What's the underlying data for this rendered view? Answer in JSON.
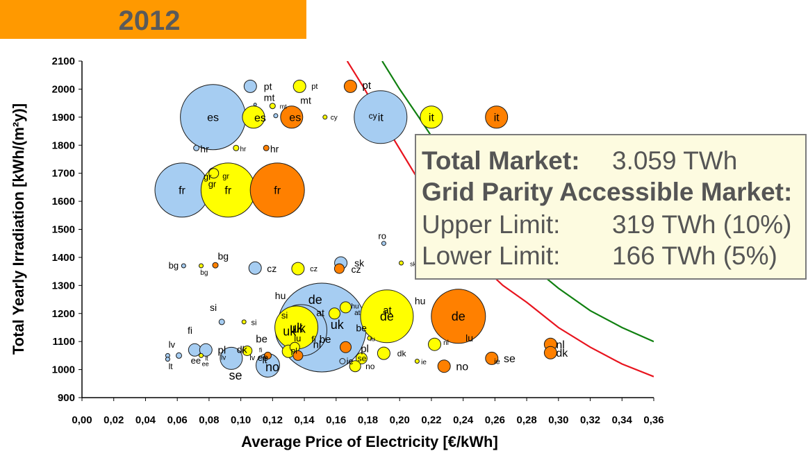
{
  "banner": {
    "year": "2012",
    "color": "#ff9900"
  },
  "infobox": {
    "total_label": "Total Market:",
    "total_value": "3.059 TWh",
    "grid_label": "Grid Parity Accessible Market:",
    "upper_label": "Upper Limit:",
    "upper_value": "319 TWh (10%)",
    "lower_label": "Lower Limit:",
    "lower_value": "166 TWh (5%)"
  },
  "chart_data": {
    "type": "bubble",
    "xlabel": "Average Price of Electricity [€/kWh]",
    "ylabel": "Total Yearly Irradiation [kWh/(m²y)]",
    "xlim": [
      0,
      0.36
    ],
    "ylim": [
      900,
      2100
    ],
    "x_ticks": [
      "0,00",
      "0,02",
      "0,04",
      "0,06",
      "0,08",
      "0,10",
      "0,12",
      "0,14",
      "0,16",
      "0,18",
      "0,20",
      "0,22",
      "0,24",
      "0,26",
      "0,28",
      "0,30",
      "0,32",
      "0,34",
      "0,36"
    ],
    "y_ticks": [
      "900",
      "1000",
      "1100",
      "1200",
      "1300",
      "1400",
      "1500",
      "1600",
      "1700",
      "1800",
      "1900",
      "2000",
      "2100"
    ],
    "grid": false,
    "series_colors": {
      "blue": "#a6cdf2",
      "yellow": "#ffff00",
      "orange": "#ff8000"
    },
    "curves": [
      {
        "color": "#e8141e",
        "points": [
          [
            0.167,
            2100
          ],
          [
            0.178,
            2000
          ],
          [
            0.19,
            1880
          ],
          [
            0.205,
            1740
          ],
          [
            0.22,
            1600
          ],
          [
            0.235,
            1480
          ],
          [
            0.25,
            1380
          ],
          [
            0.265,
            1300
          ],
          [
            0.28,
            1240
          ],
          [
            0.3,
            1150
          ],
          [
            0.32,
            1080
          ],
          [
            0.34,
            1020
          ],
          [
            0.36,
            975
          ]
        ]
      },
      {
        "color": "#108010",
        "points": [
          [
            0.189,
            2100
          ],
          [
            0.2,
            2000
          ],
          [
            0.212,
            1900
          ],
          [
            0.225,
            1790
          ],
          [
            0.24,
            1680
          ],
          [
            0.255,
            1560
          ],
          [
            0.27,
            1450
          ],
          [
            0.285,
            1360
          ],
          [
            0.3,
            1290
          ],
          [
            0.32,
            1210
          ],
          [
            0.34,
            1150
          ],
          [
            0.36,
            1100
          ]
        ]
      }
    ],
    "bubbles": [
      {
        "label": "es",
        "x": 0.0825,
        "y": 1900,
        "r": 47,
        "color": "blue",
        "fs": 16
      },
      {
        "label": "fr",
        "x": 0.063,
        "y": 1640,
        "r": 39,
        "color": "blue",
        "fs": 16
      },
      {
        "label": "it",
        "x": 0.188,
        "y": 1900,
        "r": 38,
        "color": "blue",
        "fs": 16
      },
      {
        "label": "de",
        "x": 0.151,
        "y": 1150,
        "r": 64,
        "color": "blue",
        "fs": 0
      },
      {
        "label": "uk",
        "x": 0.138,
        "y": 1140,
        "r": 37,
        "color": "blue",
        "fs": 0
      },
      {
        "label": "pt",
        "x": 0.106,
        "y": 2010,
        "r": 9,
        "color": "blue",
        "fs": 0
      },
      {
        "label": "mt",
        "x": 0.109,
        "y": 1945,
        "r": 2,
        "color": "blue",
        "fs": 0
      },
      {
        "label": "cy",
        "x": 0.122,
        "y": 1905,
        "r": 3,
        "color": "blue",
        "fs": 0
      },
      {
        "label": "hr",
        "x": 0.072,
        "y": 1790,
        "r": 4,
        "color": "blue",
        "fs": 0
      },
      {
        "label": "gr",
        "x": 0.083,
        "y": 1700,
        "r": 8,
        "color": "blue",
        "fs": 0
      },
      {
        "label": "ro",
        "x": 0.19,
        "y": 1450,
        "r": 3,
        "color": "blue",
        "fs": 0
      },
      {
        "label": "bg",
        "x": 0.064,
        "y": 1370,
        "r": 3,
        "color": "blue",
        "fs": 0
      },
      {
        "label": "cz",
        "x": 0.109,
        "y": 1362,
        "r": 9,
        "color": "blue",
        "fs": 0
      },
      {
        "label": "sk",
        "x": 0.163,
        "y": 1380,
        "r": 9,
        "color": "blue",
        "fs": 0
      },
      {
        "label": "si",
        "x": 0.088,
        "y": 1170,
        "r": 4,
        "color": "blue",
        "fs": 0
      },
      {
        "label": "fi",
        "x": 0.071,
        "y": 1070,
        "r": 9,
        "color": "blue",
        "fs": 0
      },
      {
        "label": "ee",
        "x": 0.078,
        "y": 1070,
        "r": 9,
        "color": "blue",
        "fs": 0
      },
      {
        "label": "lv",
        "x": 0.054,
        "y": 1050,
        "r": 3,
        "color": "blue",
        "fs": 0
      },
      {
        "label": "lt",
        "x": 0.054,
        "y": 1037,
        "r": 3,
        "color": "blue",
        "fs": 0
      },
      {
        "label": "dk",
        "x": 0.061,
        "y": 1050,
        "r": 4,
        "color": "blue",
        "fs": 0
      },
      {
        "label": "se",
        "x": 0.094,
        "y": 1040,
        "r": 16,
        "color": "blue",
        "fs": 0
      },
      {
        "label": "no",
        "x": 0.117,
        "y": 1015,
        "r": 17,
        "color": "blue",
        "fs": 0
      },
      {
        "label": "ie",
        "x": 0.164,
        "y": 1030,
        "r": 4,
        "color": "blue",
        "fs": 0
      },
      {
        "label": "es",
        "x": 0.108,
        "y": 1900,
        "r": 16,
        "color": "yellow",
        "fs": 0
      },
      {
        "label": "fr",
        "x": 0.092,
        "y": 1640,
        "r": 39,
        "color": "yellow",
        "fs": 16
      },
      {
        "label": "it",
        "x": 0.22,
        "y": 1900,
        "r": 16,
        "color": "yellow",
        "fs": 16
      },
      {
        "label": "de",
        "x": 0.192,
        "y": 1190,
        "r": 38,
        "color": "yellow",
        "fs": 18
      },
      {
        "label": "uk",
        "x": 0.135,
        "y": 1150,
        "r": 31,
        "color": "yellow",
        "fs": 18
      },
      {
        "label": "pt",
        "x": 0.137,
        "y": 2010,
        "r": 9,
        "color": "yellow",
        "fs": 0
      },
      {
        "label": "mt",
        "x": 0.12,
        "y": 1940,
        "r": 4,
        "color": "yellow",
        "fs": 0
      },
      {
        "label": "cy",
        "x": 0.153,
        "y": 1900,
        "r": 3,
        "color": "yellow",
        "fs": 0
      },
      {
        "label": "hr",
        "x": 0.097,
        "y": 1790,
        "r": 4,
        "color": "yellow",
        "fs": 0
      },
      {
        "label": "gr",
        "x": 0.083,
        "y": 1700,
        "r": 7,
        "color": "yellow",
        "fs": 0
      },
      {
        "label": "bg",
        "x": 0.075,
        "y": 1370,
        "r": 3,
        "color": "yellow",
        "fs": 0
      },
      {
        "label": "cz",
        "x": 0.136,
        "y": 1360,
        "r": 9,
        "color": "yellow",
        "fs": 0
      },
      {
        "label": "sk",
        "x": 0.201,
        "y": 1380,
        "r": 3,
        "color": "yellow",
        "fs": 0
      },
      {
        "label": "si",
        "x": 0.102,
        "y": 1170,
        "r": 3,
        "color": "yellow",
        "fs": 0
      },
      {
        "label": "at",
        "x": 0.159,
        "y": 1200,
        "r": 8,
        "color": "yellow",
        "fs": 0
      },
      {
        "label": "hu",
        "x": 0.166,
        "y": 1222,
        "r": 8,
        "color": "yellow",
        "fs": 0
      },
      {
        "label": "lu",
        "x": 0.181,
        "y": 1112,
        "r": 3,
        "color": "yellow",
        "fs": 0
      },
      {
        "label": "fi",
        "x": 0.104,
        "y": 1067,
        "r": 7,
        "color": "yellow",
        "fs": 0
      },
      {
        "label": "lv",
        "x": 0.075,
        "y": 1050,
        "r": 3,
        "color": "yellow",
        "fs": 0
      },
      {
        "label": "dk",
        "x": 0.19,
        "y": 1058,
        "r": 9,
        "color": "yellow",
        "fs": 0
      },
      {
        "label": "se",
        "x": 0.176,
        "y": 1040,
        "r": 8,
        "color": "yellow",
        "fs": 0
      },
      {
        "label": "no",
        "x": 0.172,
        "y": 1012,
        "r": 8,
        "color": "yellow",
        "fs": 0
      },
      {
        "label": "ie",
        "x": 0.211,
        "y": 1030,
        "r": 3,
        "color": "yellow",
        "fs": 0
      },
      {
        "label": "nl",
        "x": 0.222,
        "y": 1090,
        "r": 9,
        "color": "yellow",
        "fs": 0
      },
      {
        "label": "pl",
        "x": 0.13,
        "y": 1065,
        "r": 9,
        "color": "yellow",
        "fs": 0
      },
      {
        "label": "be",
        "x": 0.134,
        "y": 1080,
        "r": 7,
        "color": "yellow",
        "fs": 0
      },
      {
        "label": "es",
        "x": 0.132,
        "y": 1900,
        "r": 16,
        "color": "orange",
        "fs": 0
      },
      {
        "label": "fr",
        "x": 0.123,
        "y": 1640,
        "r": 39,
        "color": "orange",
        "fs": 16
      },
      {
        "label": "it",
        "x": 0.261,
        "y": 1900,
        "r": 16,
        "color": "orange",
        "fs": 16
      },
      {
        "label": "de",
        "x": 0.237,
        "y": 1190,
        "r": 39,
        "color": "orange",
        "fs": 18
      },
      {
        "label": "pt",
        "x": 0.169,
        "y": 2010,
        "r": 9,
        "color": "orange",
        "fs": 0
      },
      {
        "label": "hr",
        "x": 0.116,
        "y": 1790,
        "r": 4,
        "color": "orange",
        "fs": 0
      },
      {
        "label": "bg",
        "x": 0.084,
        "y": 1372,
        "r": 4,
        "color": "orange",
        "fs": 0
      },
      {
        "label": "cz",
        "x": 0.162,
        "y": 1360,
        "r": 7,
        "color": "orange",
        "fs": 0
      },
      {
        "label": "nl",
        "x": 0.295,
        "y": 1090,
        "r": 9,
        "color": "orange",
        "fs": 0
      },
      {
        "label": "dk",
        "x": 0.295,
        "y": 1060,
        "r": 9,
        "color": "orange",
        "fs": 0
      },
      {
        "label": "se",
        "x": 0.258,
        "y": 1040,
        "r": 9,
        "color": "orange",
        "fs": 0
      },
      {
        "label": "no",
        "x": 0.228,
        "y": 1012,
        "r": 9,
        "color": "orange",
        "fs": 0
      },
      {
        "label": "lu",
        "x": 0.166,
        "y": 1080,
        "r": 8,
        "color": "orange",
        "fs": 0
      },
      {
        "label": "hu",
        "x": 0.136,
        "y": 1050,
        "r": 7,
        "color": "orange",
        "fs": 0
      },
      {
        "label": "ee",
        "x": 0.117,
        "y": 1050,
        "r": 5,
        "color": "orange",
        "fs": 0
      }
    ],
    "texts": [
      {
        "t": "pt",
        "x": 0.1145,
        "y": 2010,
        "fs": 14
      },
      {
        "t": "pt",
        "x": 0.1445,
        "y": 2010,
        "fs": 11
      },
      {
        "t": "pt",
        "x": 0.1765,
        "y": 2014,
        "fs": 15
      },
      {
        "t": "mt",
        "x": 0.1145,
        "y": 1970,
        "fs": 14
      },
      {
        "t": "mt",
        "x": 0.1375,
        "y": 1960,
        "fs": 14
      },
      {
        "t": "mt",
        "x": 0.1245,
        "y": 1938,
        "fs": 9
      },
      {
        "t": "cy",
        "x": 0.1565,
        "y": 1900,
        "fs": 10
      },
      {
        "t": "es",
        "x": 0.1085,
        "y": 1898,
        "fs": 16
      },
      {
        "t": "es",
        "x": 0.1305,
        "y": 1900,
        "fs": 16
      },
      {
        "t": "cy",
        "x": 0.1805,
        "y": 1905,
        "fs": 12
      },
      {
        "t": "hr",
        "x": 0.0745,
        "y": 1787,
        "fs": 14
      },
      {
        "t": "hr",
        "x": 0.0995,
        "y": 1787,
        "fs": 10
      },
      {
        "t": "hr",
        "x": 0.1185,
        "y": 1787,
        "fs": 14
      },
      {
        "t": "gr",
        "x": 0.0765,
        "y": 1688,
        "fs": 13
      },
      {
        "t": "gr",
        "x": 0.0885,
        "y": 1690,
        "fs": 11
      },
      {
        "t": "gr",
        "x": 0.0795,
        "y": 1662,
        "fs": 13
      },
      {
        "t": "ro",
        "x": 0.1865,
        "y": 1477,
        "fs": 13
      },
      {
        "t": "bg",
        "x": 0.0545,
        "y": 1372,
        "fs": 13
      },
      {
        "t": "bg",
        "x": 0.0855,
        "y": 1405,
        "fs": 14
      },
      {
        "t": "bg",
        "x": 0.0745,
        "y": 1347,
        "fs": 10
      },
      {
        "t": "cz",
        "x": 0.1165,
        "y": 1360,
        "fs": 14
      },
      {
        "t": "cz",
        "x": 0.1435,
        "y": 1360,
        "fs": 11
      },
      {
        "t": "sk",
        "x": 0.1715,
        "y": 1380,
        "fs": 14
      },
      {
        "t": "cz",
        "x": 0.1695,
        "y": 1358,
        "fs": 14
      },
      {
        "t": "sk",
        "x": 0.2065,
        "y": 1377,
        "fs": 9
      },
      {
        "t": "hu",
        "x": 0.1215,
        "y": 1264,
        "fs": 14
      },
      {
        "t": "hu",
        "x": 0.2095,
        "y": 1245,
        "fs": 14
      },
      {
        "t": "si",
        "x": 0.0805,
        "y": 1222,
        "fs": 14
      },
      {
        "t": "si",
        "x": 0.1065,
        "y": 1168,
        "fs": 11
      },
      {
        "t": "at",
        "x": 0.1475,
        "y": 1203,
        "fs": 14
      },
      {
        "t": "at",
        "x": 0.1715,
        "y": 1203,
        "fs": 10
      },
      {
        "t": "hu",
        "x": 0.1695,
        "y": 1227,
        "fs": 10
      },
      {
        "t": "at",
        "x": 0.1895,
        "y": 1212,
        "fs": 15
      },
      {
        "t": "si",
        "x": 0.1255,
        "y": 1193,
        "fs": 13
      },
      {
        "t": "fi",
        "x": 0.0665,
        "y": 1140,
        "fs": 14
      },
      {
        "t": "be",
        "x": 0.1725,
        "y": 1148,
        "fs": 14
      },
      {
        "t": "lu",
        "x": 0.1815,
        "y": 1110,
        "fs": 9
      },
      {
        "t": "lu",
        "x": 0.2415,
        "y": 1112,
        "fs": 14
      },
      {
        "t": "nl",
        "x": 0.2275,
        "y": 1097,
        "fs": 10
      },
      {
        "t": "lv",
        "x": 0.0545,
        "y": 1090,
        "fs": 13
      },
      {
        "t": "pl",
        "x": 0.0855,
        "y": 1070,
        "fs": 15
      },
      {
        "t": "dk",
        "x": 0.0975,
        "y": 1072,
        "fs": 14
      },
      {
        "t": "be",
        "x": 0.1095,
        "y": 1110,
        "fs": 15
      },
      {
        "t": "fi",
        "x": 0.1115,
        "y": 1070,
        "fs": 9
      },
      {
        "t": "lt",
        "x": 0.0545,
        "y": 1012,
        "fs": 12
      },
      {
        "t": "ee",
        "x": 0.0685,
        "y": 1032,
        "fs": 13
      },
      {
        "t": "lt",
        "x": 0.0775,
        "y": 1040,
        "fs": 9
      },
      {
        "t": "ee",
        "x": 0.0755,
        "y": 1020,
        "fs": 9
      },
      {
        "t": "lv",
        "x": 0.0875,
        "y": 1043,
        "fs": 10
      },
      {
        "t": "lv",
        "x": 0.1055,
        "y": 1043,
        "fs": 11
      },
      {
        "t": "ee",
        "x": 0.1105,
        "y": 1043,
        "fs": 14
      },
      {
        "t": "lt",
        "x": 0.1135,
        "y": 1035,
        "fs": 14
      },
      {
        "t": "fi",
        "x": 0.1445,
        "y": 1108,
        "fs": 13
      },
      {
        "t": "be",
        "x": 0.1495,
        "y": 1108,
        "fs": 15
      },
      {
        "t": "nl",
        "x": 0.1455,
        "y": 1090,
        "fs": 15
      },
      {
        "t": "lu",
        "x": 0.1335,
        "y": 1112,
        "fs": 13
      },
      {
        "t": "pl",
        "x": 0.1315,
        "y": 1068,
        "fs": 12
      },
      {
        "t": "pl",
        "x": 0.1755,
        "y": 1075,
        "fs": 15
      },
      {
        "t": "dk",
        "x": 0.1985,
        "y": 1058,
        "fs": 12
      },
      {
        "t": "se",
        "x": 0.1735,
        "y": 1040,
        "fs": 12
      },
      {
        "t": "ie",
        "x": 0.1665,
        "y": 1030,
        "fs": 13
      },
      {
        "t": "ie",
        "x": 0.2135,
        "y": 1028,
        "fs": 10
      },
      {
        "t": "ie",
        "x": 0.2595,
        "y": 1030,
        "fs": 11
      },
      {
        "t": "no",
        "x": 0.1785,
        "y": 1012,
        "fs": 12
      },
      {
        "t": "no",
        "x": 0.2355,
        "y": 1012,
        "fs": 16
      },
      {
        "t": "se",
        "x": 0.2655,
        "y": 1040,
        "fs": 16
      },
      {
        "t": "nl",
        "x": 0.2985,
        "y": 1090,
        "fs": 16
      },
      {
        "t": "dk",
        "x": 0.2985,
        "y": 1060,
        "fs": 16
      },
      {
        "t": "se",
        "x": 0.0925,
        "y": 980,
        "fs": 18
      },
      {
        "t": "no",
        "x": 0.1155,
        "y": 1010,
        "fs": 18
      },
      {
        "t": "uk",
        "x": 0.1265,
        "y": 1137,
        "fs": 18
      },
      {
        "t": "uk",
        "x": 0.1565,
        "y": 1160,
        "fs": 18
      },
      {
        "t": "de",
        "x": 0.1425,
        "y": 1250,
        "fs": 18
      },
      {
        "t": "uk",
        "x": 0.1325,
        "y": 1147,
        "fs": 18
      }
    ]
  }
}
